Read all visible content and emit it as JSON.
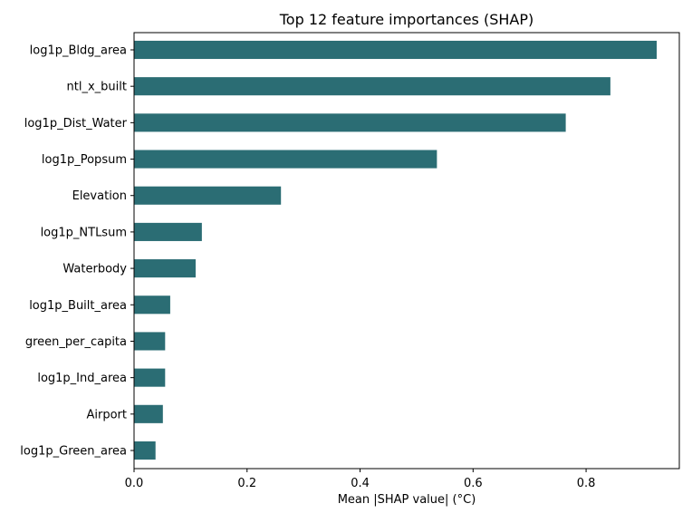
{
  "chart_data": {
    "type": "bar",
    "orientation": "horizontal",
    "title": "Top 12 feature importances (SHAP)",
    "xlabel": "Mean |SHAP value| (°C)",
    "ylabel": "",
    "xlim": [
      0,
      0.965
    ],
    "xticks": [
      0.0,
      0.2,
      0.4,
      0.6,
      0.8
    ],
    "xtick_labels": [
      "0.0",
      "0.2",
      "0.4",
      "0.6",
      "0.8"
    ],
    "grid": false,
    "legend": "none",
    "bar_color": "#2b6d74",
    "categories": [
      "log1p_Bldg_area",
      "ntl_x_built",
      "log1p_Dist_Water",
      "log1p_Popsum",
      "Elevation",
      "log1p_NTLsum",
      "Waterbody",
      "log1p_Built_area",
      "green_per_capita",
      "log1p_Ind_area",
      "Airport",
      "log1p_Green_area"
    ],
    "values": [
      0.925,
      0.843,
      0.764,
      0.536,
      0.26,
      0.12,
      0.109,
      0.064,
      0.055,
      0.055,
      0.051,
      0.038
    ]
  }
}
